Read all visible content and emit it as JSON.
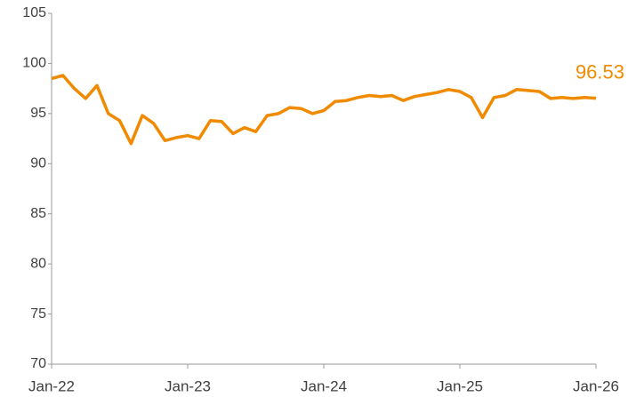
{
  "chart_data": {
    "type": "line",
    "categories": [
      "Jan-22",
      null,
      null,
      null,
      null,
      null,
      null,
      null,
      null,
      null,
      null,
      null,
      "Jan-23",
      null,
      null,
      null,
      null,
      null,
      null,
      null,
      null,
      null,
      null,
      null,
      "Jan-24",
      null,
      null,
      null,
      null,
      null,
      null,
      null,
      null,
      null,
      null,
      null,
      "Jan-25",
      null,
      null,
      null,
      null,
      null,
      null,
      null,
      null,
      null,
      null,
      null,
      "Jan-26"
    ],
    "values": [
      98.5,
      98.8,
      97.5,
      96.5,
      97.8,
      95.0,
      94.3,
      92.0,
      94.8,
      94.0,
      92.3,
      92.6,
      92.8,
      92.5,
      94.3,
      94.2,
      93.0,
      93.6,
      93.2,
      94.8,
      95.0,
      95.6,
      95.5,
      95.0,
      95.3,
      96.2,
      96.3,
      96.6,
      96.8,
      96.7,
      96.8,
      96.3,
      96.7,
      96.9,
      97.1,
      97.4,
      97.2,
      96.6,
      94.6,
      96.6,
      96.8,
      97.4,
      97.3,
      97.2,
      96.5,
      96.6,
      96.5,
      96.6,
      96.53
    ],
    "color": "#f08a00",
    "ylim": [
      70,
      105
    ],
    "yticks": [
      70,
      75,
      80,
      85,
      90,
      95,
      100,
      105
    ],
    "grid": false
  }
}
